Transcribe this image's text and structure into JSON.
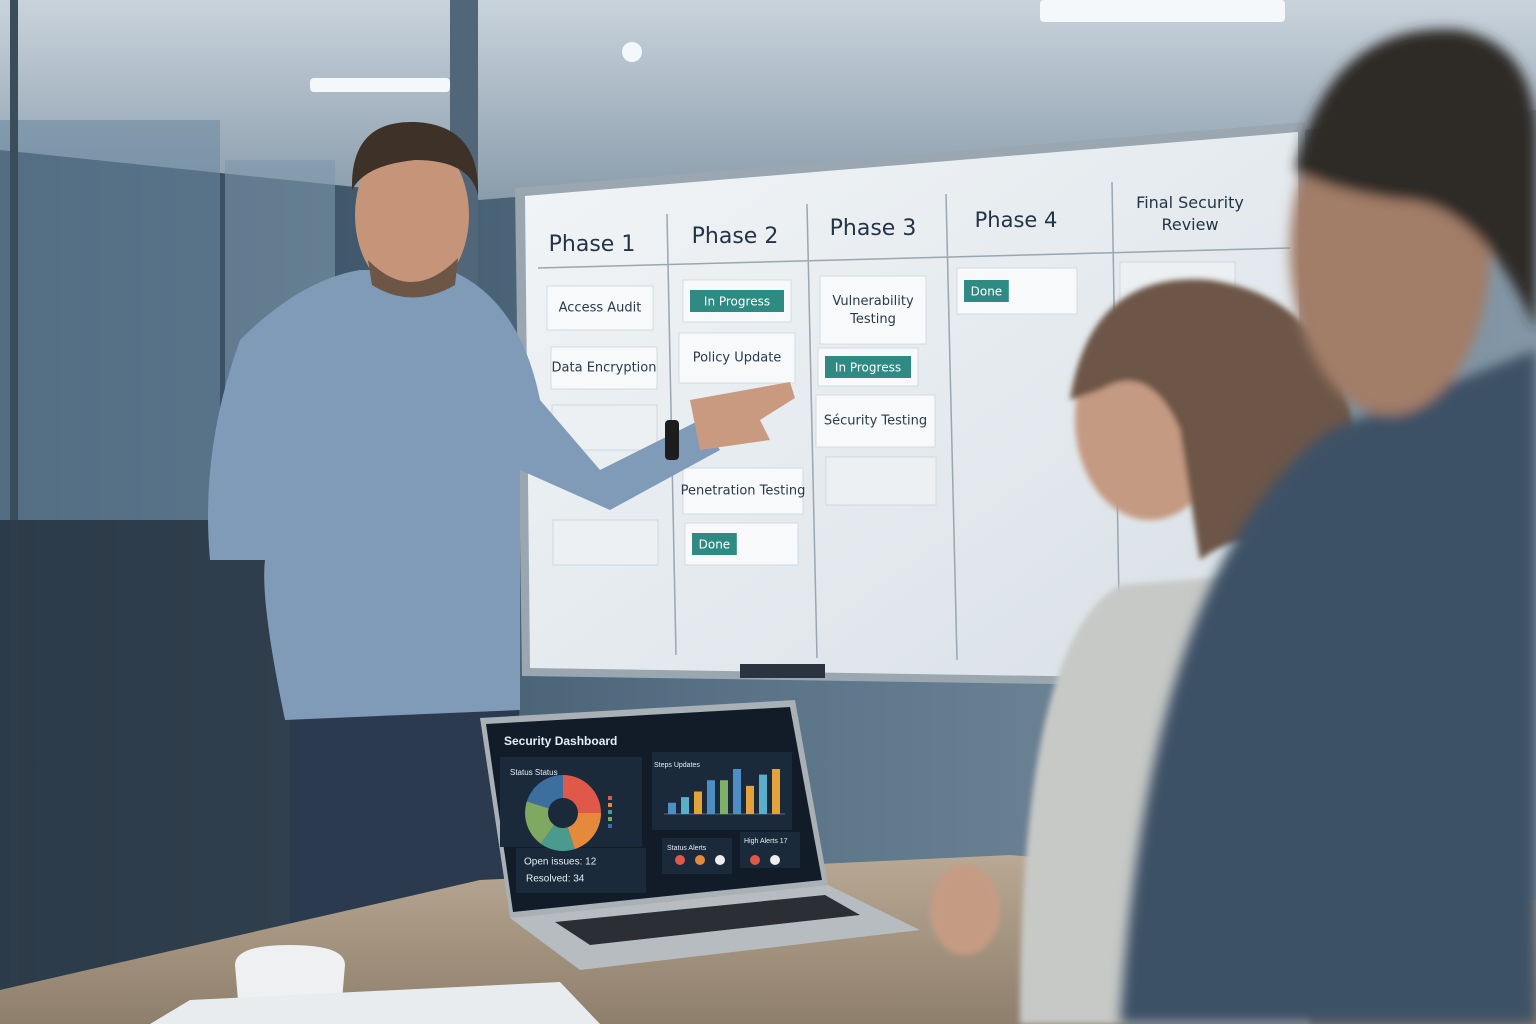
{
  "whiteboard": {
    "columns": [
      {
        "title": "Phase 1",
        "cards": [
          {
            "text": "Access Audit",
            "color": "#ffffff"
          },
          {
            "text": "Data Encryption",
            "color": "#ffffff"
          }
        ]
      },
      {
        "title": "Phase 2",
        "cards": [
          {
            "text": "In Progress",
            "color": "#2f8a83"
          },
          {
            "text": "Policy Update",
            "color": "#ffffff"
          },
          {
            "text": "Penetration Testing",
            "color": "#ffffff"
          },
          {
            "text": "Done",
            "color": "#2f8a83"
          }
        ]
      },
      {
        "title": "Phase 3",
        "cards": [
          {
            "text": "Vulnerability Testing",
            "color": "#ffffff"
          },
          {
            "text": "In Progress",
            "color": "#2f8a83"
          },
          {
            "text": "Sécurity Testing",
            "color": "#ffffff"
          }
        ]
      },
      {
        "title": "Phase 4",
        "cards": [
          {
            "text": "Done",
            "color": "#2f8a83"
          }
        ]
      },
      {
        "title": "Final Security Review",
        "cards": []
      }
    ]
  },
  "laptop": {
    "title": "Security Dashboard",
    "donut": {
      "title": "Status Status",
      "values": [
        25,
        20,
        15,
        20,
        20
      ],
      "colors": [
        "#e0584a",
        "#e58a3c",
        "#4a9a8e",
        "#7fa860",
        "#3d6f9e"
      ]
    },
    "bars": {
      "title": "Steps Updates",
      "values": [
        2,
        3,
        4,
        6,
        6,
        8,
        5,
        7,
        8
      ],
      "colors": [
        "#4d8fc4",
        "#5bb0c9",
        "#e2a33c",
        "#4d8fc4",
        "#7fb06a",
        "#4d8fc4",
        "#e2a33c",
        "#5bb0c9",
        "#e2a33c"
      ]
    },
    "open_issues": "Open issues: 12",
    "resolved": "Resolved: 34",
    "alerts_title": "Status Alerts",
    "high_alerts": "High Alerts 17"
  }
}
